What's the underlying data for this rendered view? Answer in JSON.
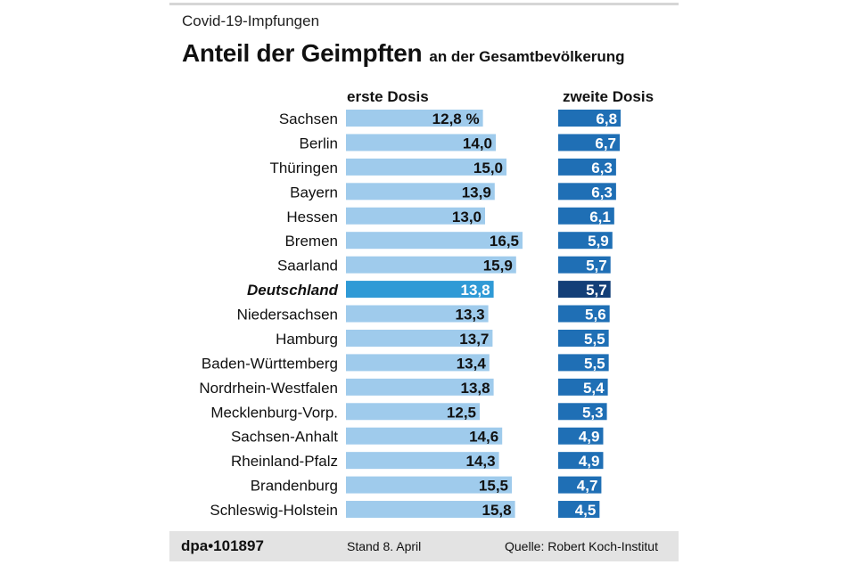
{
  "header": {
    "kicker": "Covid-19-Impfungen",
    "title": "Anteil der Geimpften",
    "subtitle": "an der Gesamtbevölkerung"
  },
  "columns": {
    "first": "erste Dosis",
    "second": "zweite Dosis"
  },
  "footer": {
    "brand": "dpa•101897",
    "date": "Stand 8. April",
    "source": "Quelle: Robert Koch-Institut"
  },
  "colors": {
    "first_bar": "#9fcbec",
    "first_highlight": "#2f9ad6",
    "second_bar": "#1f6fb5",
    "second_highlight": "#133f78"
  },
  "chart_data": {
    "type": "bar",
    "title": "Anteil der Geimpften an der Gesamtbevölkerung",
    "unit": "%",
    "highlight": "Deutschland",
    "categories": [
      "Sachsen",
      "Berlin",
      "Thüringen",
      "Bayern",
      "Hessen",
      "Bremen",
      "Saarland",
      "Deutschland",
      "Niedersachsen",
      "Hamburg",
      "Baden-Württemberg",
      "Nordrhein-Westfalen",
      "Mecklenburg-Vorp.",
      "Sachsen-Anhalt",
      "Rheinland-Pfalz",
      "Brandenburg",
      "Schleswig-Holstein"
    ],
    "series": [
      {
        "name": "erste Dosis",
        "values": [
          12.8,
          14.0,
          15.0,
          13.9,
          13.0,
          16.5,
          15.9,
          13.8,
          13.3,
          13.7,
          13.4,
          13.8,
          12.5,
          14.6,
          14.3,
          15.5,
          15.8
        ],
        "labels": [
          "12,8 %",
          "14,0",
          "15,0",
          "13,9",
          "13,0",
          "16,5",
          "15,9",
          "13,8",
          "13,3",
          "13,7",
          "13,4",
          "13,8",
          "12,5",
          "14,6",
          "14,3",
          "15,5",
          "15,8"
        ]
      },
      {
        "name": "zweite Dosis",
        "values": [
          6.8,
          6.7,
          6.3,
          6.3,
          6.1,
          5.9,
          5.7,
          5.7,
          5.6,
          5.5,
          5.5,
          5.4,
          5.3,
          4.9,
          4.9,
          4.7,
          4.5
        ],
        "labels": [
          "6,8",
          "6,7",
          "6,3",
          "6,3",
          "6,1",
          "5,9",
          "5,7",
          "5,7",
          "5,6",
          "5,5",
          "5,5",
          "5,4",
          "5,3",
          "4,9",
          "4,9",
          "4,7",
          "4,5"
        ]
      }
    ]
  }
}
